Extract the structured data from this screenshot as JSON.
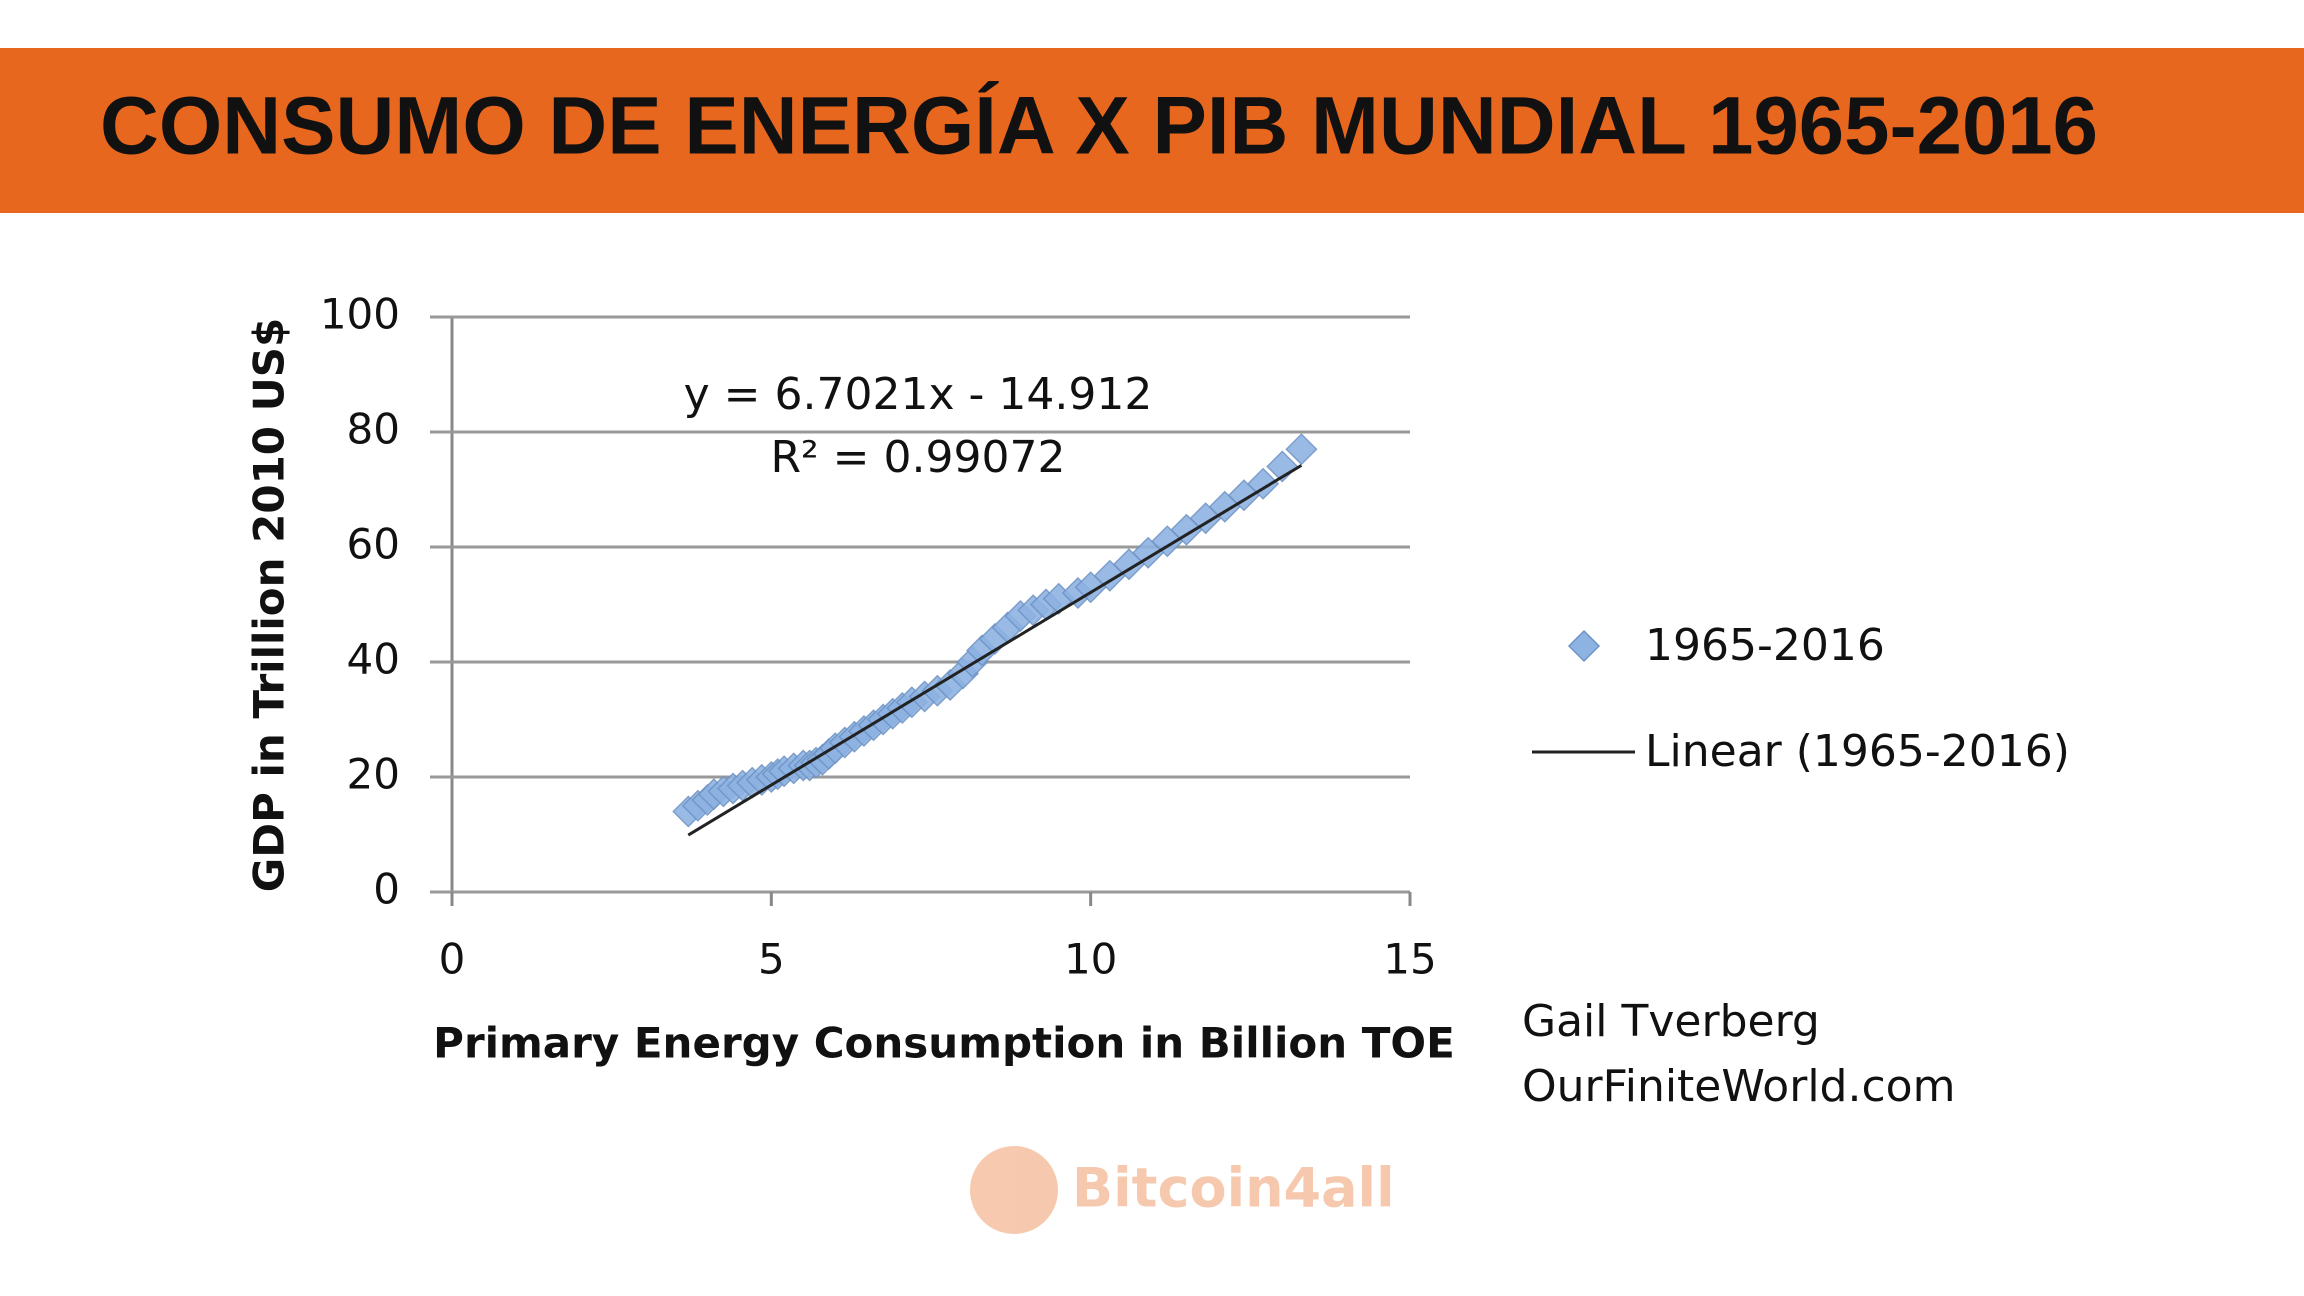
{
  "header": {
    "title": "CONSUMO DE ENERGÍA X PIB MUNDIAL 1965-2016"
  },
  "chart_data": {
    "type": "scatter",
    "x_label": "Primary Energy Consumption in Billion TOE",
    "y_label": "GDP in Trillion 2010 US$",
    "annotations": [
      "y = 6.7021x - 14.912",
      "R² = 0.99072"
    ],
    "xlim": [
      0,
      15
    ],
    "xticks": [
      0,
      5,
      10,
      15
    ],
    "ylim": [
      0,
      100
    ],
    "yticks": [
      0,
      20,
      40,
      60,
      80,
      100
    ],
    "grid": true,
    "legend": "right",
    "series": [
      {
        "name": "1965-2016",
        "color": "#8db3e2",
        "type": "scatter",
        "x": [
          3.7,
          3.85,
          4.0,
          4.1,
          4.25,
          4.4,
          4.55,
          4.7,
          4.85,
          5.0,
          5.1,
          5.2,
          5.35,
          5.5,
          5.6,
          5.7,
          5.8,
          5.9,
          6.0,
          6.15,
          6.3,
          6.45,
          6.6,
          6.75,
          6.9,
          7.05,
          7.2,
          7.4,
          7.6,
          7.8,
          8.0,
          8.15,
          8.3,
          8.5,
          8.7,
          8.9,
          9.1,
          9.3,
          9.5,
          9.8,
          10.0,
          10.3,
          10.6,
          10.9,
          11.2,
          11.5,
          11.8,
          12.1,
          12.4,
          12.7,
          13.0,
          13.3
        ],
        "values": [
          14,
          15,
          16,
          17,
          17.5,
          18,
          18.5,
          19,
          19.5,
          20,
          20.5,
          21,
          21.5,
          22,
          22,
          22.5,
          23,
          24,
          25,
          26,
          27,
          28,
          29,
          30,
          31,
          32,
          33,
          34,
          35,
          36,
          38,
          40,
          42,
          44,
          46,
          48,
          49,
          50,
          51,
          52,
          53,
          55,
          57,
          59,
          61,
          63,
          65,
          67,
          69,
          71,
          74,
          77
        ]
      },
      {
        "name": "Linear (1965-2016)",
        "color": "#222222",
        "type": "line",
        "x": [
          3.7,
          13.3
        ],
        "values": [
          9.9,
          74.2
        ]
      }
    ]
  },
  "credit": [
    "Gail Tverberg",
    "OurFiniteWorld.com"
  ],
  "watermark": "Bitcoin4all"
}
